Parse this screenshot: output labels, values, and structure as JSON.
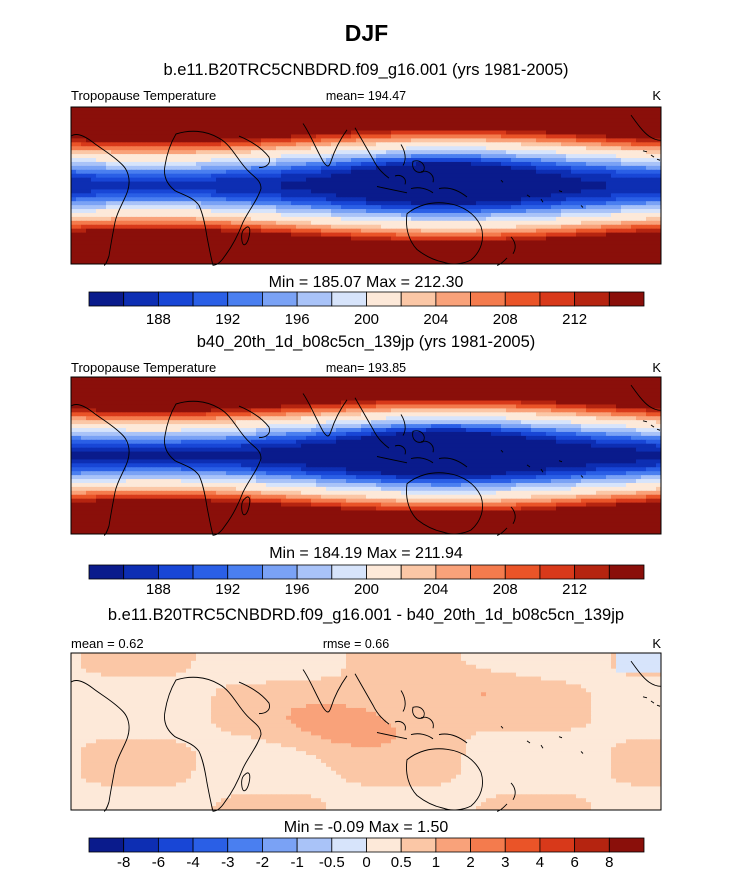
{
  "title": "DJF",
  "chart_data": [
    {
      "type": "heatmap",
      "title": "b.e11.B20TRC5CNBDRD.f09_g16.001 (yrs 1981-2005)",
      "left_label": "Tropopause Temperature",
      "center_label": "mean= 194.47",
      "units": "K",
      "stats": "Min = 185.07 Max = 212.30",
      "min": 185.07,
      "max": 212.3,
      "mean": 194.47,
      "colorbar": {
        "tick_labels": [
          "188",
          "192",
          "196",
          "200",
          "204",
          "208",
          "212"
        ],
        "tick_positions": [
          2,
          4,
          6,
          8,
          10,
          12,
          14
        ],
        "colors": [
          "#0a1b8c",
          "#0d2eb3",
          "#1846d6",
          "#2a5fe6",
          "#4a7ff0",
          "#7aa2f5",
          "#a9c3f8",
          "#d7e4fb",
          "#fde9d9",
          "#fbc7a6",
          "#f9a27a",
          "#f47b4d",
          "#ea5428",
          "#d8391a",
          "#b52410",
          "#8a0f0a"
        ]
      }
    },
    {
      "type": "heatmap",
      "title": "b40_20th_1d_b08c5cn_139jp (yrs 1981-2005)",
      "left_label": "Tropopause Temperature",
      "center_label": "mean= 193.85",
      "units": "K",
      "stats": "Min = 184.19 Max = 211.94",
      "min": 184.19,
      "max": 211.94,
      "mean": 193.85,
      "colorbar": {
        "tick_labels": [
          "188",
          "192",
          "196",
          "200",
          "204",
          "208",
          "212"
        ],
        "tick_positions": [
          2,
          4,
          6,
          8,
          10,
          12,
          14
        ],
        "colors": [
          "#0a1b8c",
          "#0d2eb3",
          "#1846d6",
          "#2a5fe6",
          "#4a7ff0",
          "#7aa2f5",
          "#a9c3f8",
          "#d7e4fb",
          "#fde9d9",
          "#fbc7a6",
          "#f9a27a",
          "#f47b4d",
          "#ea5428",
          "#d8391a",
          "#b52410",
          "#8a0f0a"
        ]
      }
    },
    {
      "type": "heatmap",
      "title": "b.e11.B20TRC5CNBDRD.f09_g16.001 - b40_20th_1d_b08c5cn_139jp",
      "left_label": "mean =   0.62",
      "center_label": "rmse =   0.66",
      "units": "K",
      "stats": "Min =  -0.09 Max =   1.50",
      "min": -0.09,
      "max": 1.5,
      "mean": 0.62,
      "rmse": 0.66,
      "colorbar": {
        "tick_labels": [
          "-8",
          "-6",
          "-4",
          "-3",
          "-2",
          "-1",
          "-0.5",
          "0",
          "0.5",
          "1",
          "2",
          "3",
          "4",
          "6",
          "8"
        ],
        "tick_positions": [
          1,
          2,
          3,
          4,
          5,
          6,
          7,
          8,
          9,
          10,
          11,
          12,
          13,
          14,
          15
        ],
        "colors": [
          "#0a1b8c",
          "#0d2eb3",
          "#1846d6",
          "#2a5fe6",
          "#4a7ff0",
          "#7aa2f5",
          "#a9c3f8",
          "#d7e4fb",
          "#fde9d9",
          "#fbc7a6",
          "#f9a27a",
          "#f47b4d",
          "#ea5428",
          "#d8391a",
          "#b52410",
          "#8a0f0a"
        ]
      }
    }
  ]
}
